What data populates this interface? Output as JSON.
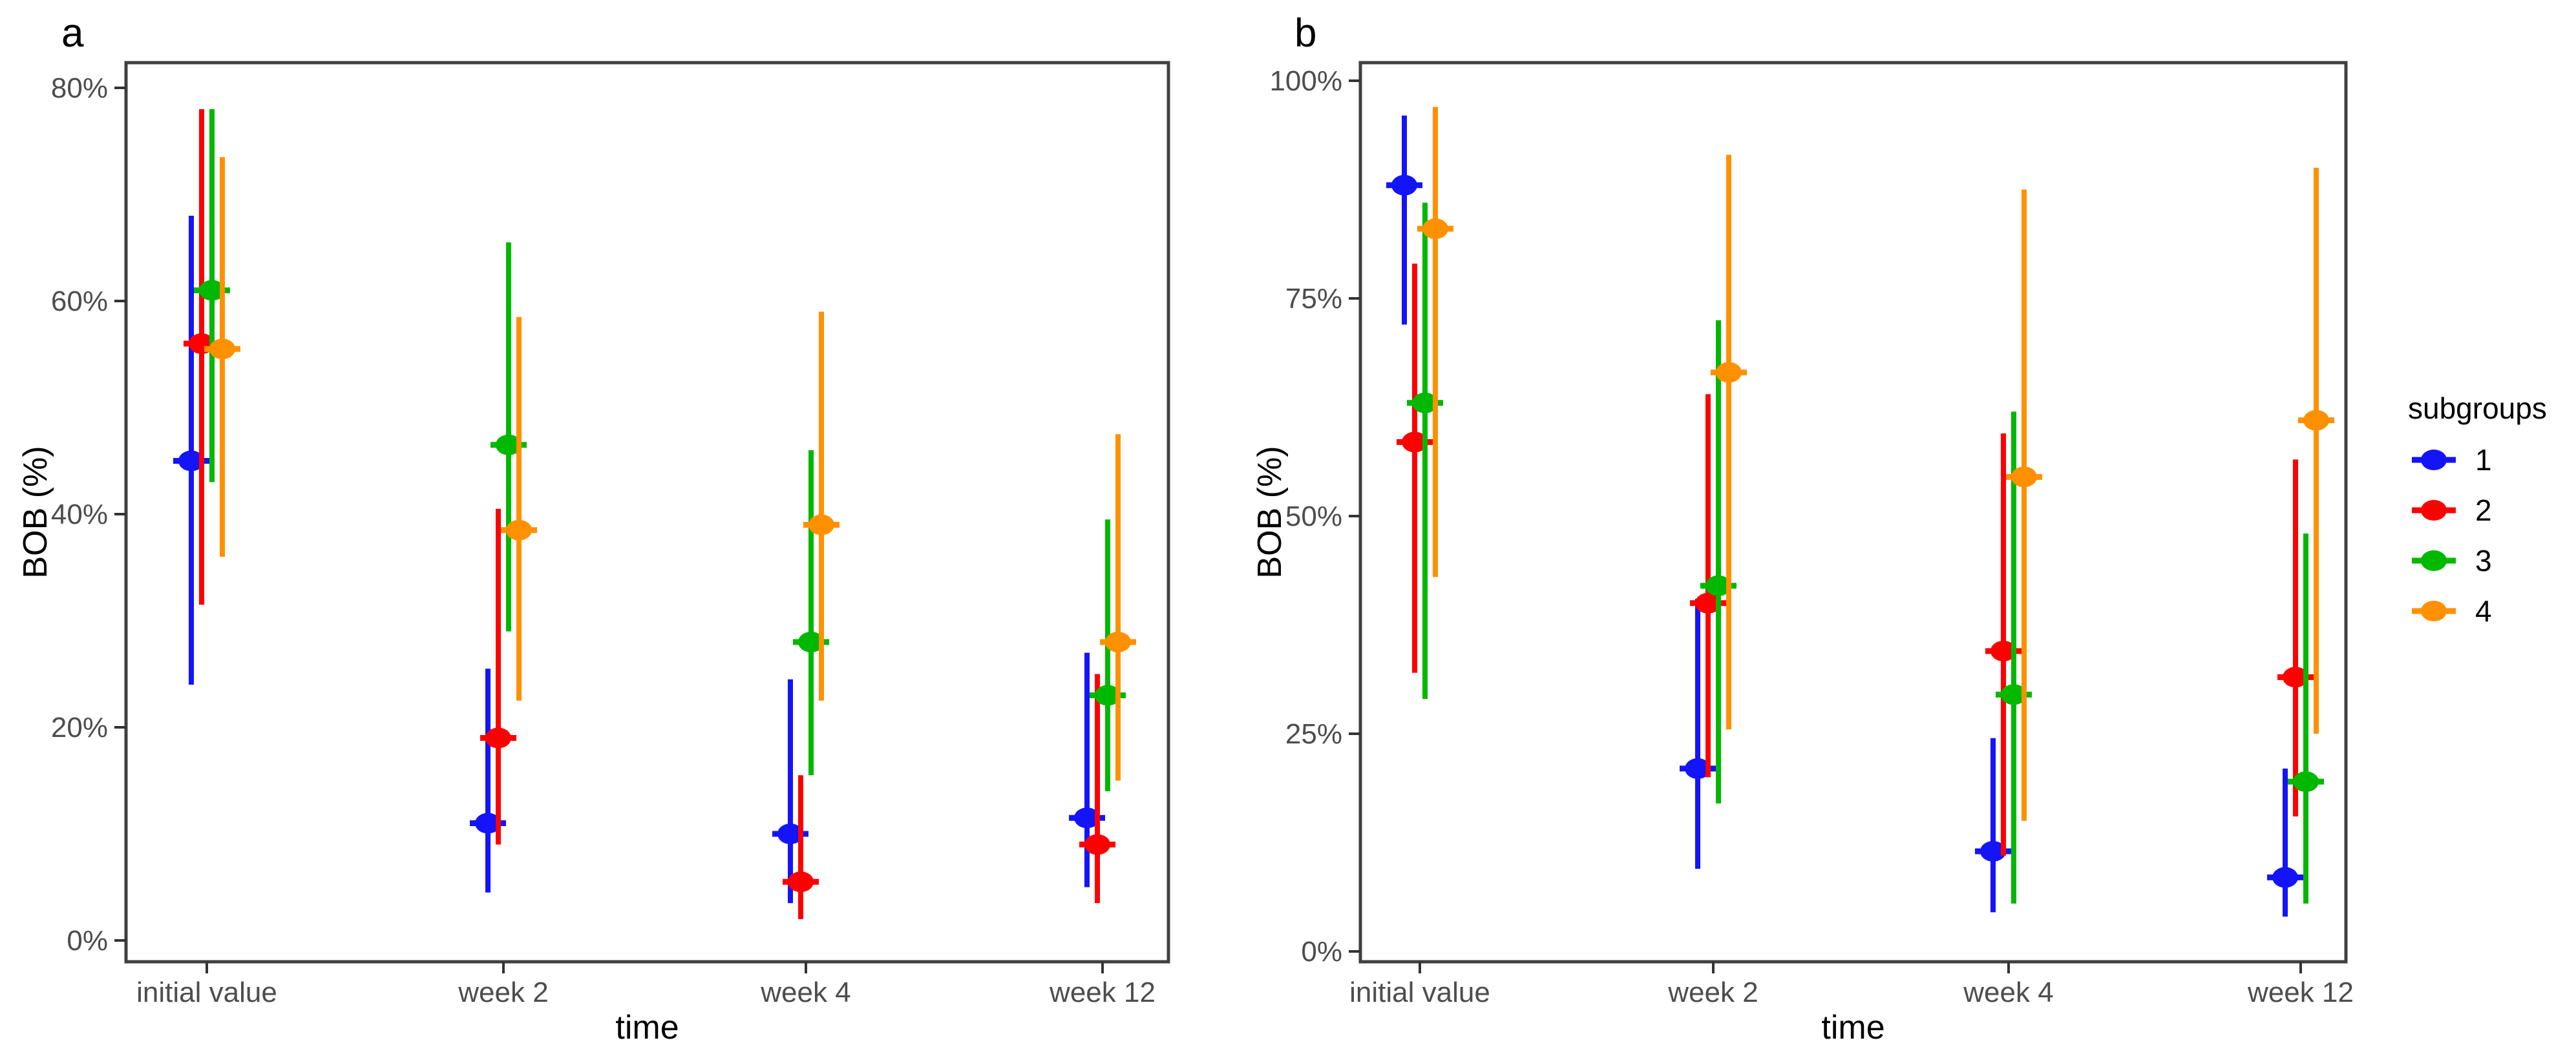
{
  "legend": {
    "title": "subgroups",
    "items": [
      {
        "label": "1",
        "color": "#1414FA"
      },
      {
        "label": "2",
        "color": "#FF0000"
      },
      {
        "label": "3",
        "color": "#00B800"
      },
      {
        "label": "4",
        "color": "#FF9100"
      }
    ]
  },
  "chart_data": [
    {
      "type": "scatter",
      "title": "a",
      "xlabel": "time",
      "ylabel": "BOB (%)",
      "categories": [
        "initial value",
        "week 2",
        "week 4",
        "week 12"
      ],
      "ylim": [
        0,
        80
      ],
      "ytick_values": [
        0,
        20,
        40,
        60,
        80
      ],
      "ytick_labels": [
        "0%",
        "20%",
        "40%",
        "60%",
        "80%"
      ],
      "grid": false,
      "legend_position": "right",
      "error_bars": "95% CI (vertical range per point)",
      "series": [
        {
          "name": "1",
          "color": "#1414FA",
          "values": [
            45,
            11,
            10,
            11.5
          ],
          "ci_low": [
            24,
            4.5,
            3.5,
            5
          ],
          "ci_high": [
            68,
            25.5,
            24.5,
            27
          ]
        },
        {
          "name": "2",
          "color": "#FF0000",
          "values": [
            56,
            19,
            5.5,
            9
          ],
          "ci_low": [
            31.5,
            9,
            2,
            3.5
          ],
          "ci_high": [
            78,
            40.5,
            15.5,
            25
          ]
        },
        {
          "name": "3",
          "color": "#00B800",
          "values": [
            61,
            46.5,
            28,
            23
          ],
          "ci_low": [
            43,
            29,
            15.5,
            14
          ],
          "ci_high": [
            78,
            65.5,
            46,
            39.5
          ]
        },
        {
          "name": "4",
          "color": "#FF9100",
          "values": [
            55.5,
            38.5,
            39,
            28
          ],
          "ci_low": [
            36,
            22.5,
            22.5,
            15
          ],
          "ci_high": [
            73.5,
            58.5,
            59,
            47.5
          ]
        }
      ]
    },
    {
      "type": "scatter",
      "title": "b",
      "xlabel": "time",
      "ylabel": "BOB (%)",
      "categories": [
        "initial value",
        "week 2",
        "week 4",
        "week 12"
      ],
      "ylim": [
        0,
        100
      ],
      "ytick_values": [
        0,
        25,
        50,
        75,
        100
      ],
      "ytick_labels": [
        "0%",
        "25%",
        "50%",
        "75%",
        "100%"
      ],
      "grid": false,
      "legend_position": "right",
      "error_bars": "95% CI (vertical range per point)",
      "series": [
        {
          "name": "1",
          "color": "#1414FA",
          "values": [
            88,
            21,
            11.5,
            8.5
          ],
          "ci_low": [
            72,
            9.5,
            4.5,
            4
          ],
          "ci_high": [
            96,
            40.5,
            24.5,
            21
          ]
        },
        {
          "name": "2",
          "color": "#FF0000",
          "values": [
            58.5,
            40,
            34.5,
            31.5
          ],
          "ci_low": [
            32,
            20,
            11,
            15.5
          ],
          "ci_high": [
            79,
            64,
            59.5,
            56.5
          ]
        },
        {
          "name": "3",
          "color": "#00B800",
          "values": [
            63,
            42,
            29.5,
            19.5
          ],
          "ci_low": [
            29,
            17,
            5.5,
            5.5
          ],
          "ci_high": [
            86,
            72.5,
            62,
            48
          ]
        },
        {
          "name": "4",
          "color": "#FF9100",
          "values": [
            83,
            66.5,
            54.5,
            61
          ],
          "ci_low": [
            43,
            25.5,
            15,
            25
          ],
          "ci_high": [
            97,
            91.5,
            87.5,
            90
          ]
        }
      ]
    }
  ]
}
